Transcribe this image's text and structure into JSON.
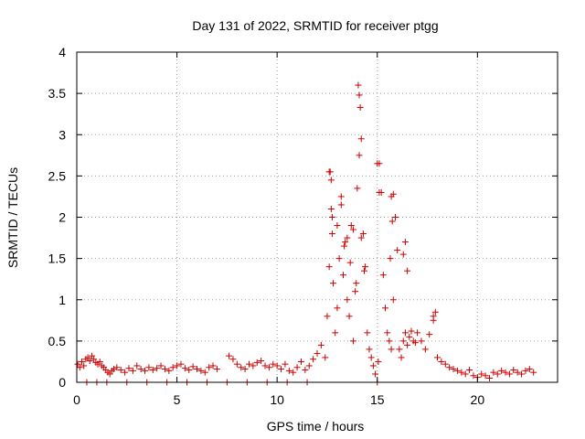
{
  "chart_data": {
    "type": "scatter",
    "title": "Day 131 of 2022, SRMTID for receiver ptgg",
    "xlabel": "GPS time / hours",
    "ylabel": "SRMTID / TECUs",
    "xlim": [
      0,
      24
    ],
    "ylim": [
      0,
      4
    ],
    "xticks": [
      0,
      5,
      10,
      15,
      20
    ],
    "yticks": [
      0,
      0.5,
      1,
      1.5,
      2,
      2.5,
      3,
      3.5,
      4
    ],
    "grid": true,
    "marker": "plus",
    "color": "#cc0000",
    "series": [
      {
        "name": "SRMTID",
        "x": [
          0.05,
          0.15,
          0.25,
          0.35,
          0.45,
          0.55,
          0.65,
          0.75,
          0.85,
          0.95,
          1.05,
          1.15,
          1.25,
          1.35,
          1.45,
          1.55,
          1.65,
          1.75,
          1.85,
          2.0,
          2.2,
          2.4,
          2.6,
          2.8,
          3.0,
          3.2,
          3.4,
          3.6,
          3.8,
          4.0,
          4.2,
          4.4,
          4.6,
          4.8,
          5.0,
          5.2,
          5.4,
          5.6,
          5.8,
          6.0,
          6.2,
          6.4,
          6.6,
          6.8,
          7.0,
          7.6,
          7.8,
          8.0,
          8.2,
          8.4,
          8.6,
          8.8,
          9.0,
          9.2,
          9.4,
          9.6,
          9.8,
          10.0,
          10.2,
          10.4,
          10.6,
          10.8,
          11.0,
          11.2,
          11.4,
          11.6,
          11.8,
          12.0,
          12.2,
          12.4,
          12.5,
          12.6,
          12.65,
          12.7,
          12.75,
          12.8,
          12.9,
          13.0,
          13.1,
          13.2,
          13.3,
          13.4,
          13.5,
          13.6,
          13.7,
          13.8,
          13.9,
          14.0,
          14.05,
          14.1,
          14.15,
          14.2,
          14.3,
          14.4,
          14.5,
          14.6,
          14.7,
          14.8,
          14.9,
          15.0,
          15.05,
          15.1,
          15.2,
          15.3,
          15.4,
          15.5,
          15.6,
          15.7,
          15.75,
          15.8,
          15.9,
          16.0,
          16.1,
          16.2,
          16.3,
          16.4,
          16.5,
          16.6,
          16.7,
          16.8,
          16.9,
          17.0,
          17.2,
          17.4,
          17.6,
          17.8,
          18.0,
          18.2,
          18.4,
          18.6,
          18.8,
          19.0,
          19.2,
          19.4,
          19.6,
          19.8,
          20.0,
          20.2,
          20.4,
          20.6,
          20.8,
          21.0,
          21.2,
          21.4,
          21.6,
          21.8,
          22.0,
          22.2,
          22.4,
          22.6,
          22.8,
          0.5,
          1.0,
          1.5,
          2.5,
          3.5,
          4.5,
          5.5,
          6.5,
          7.5,
          8.5,
          9.5,
          10.5,
          11.5,
          12.6,
          12.7,
          12.75,
          13.0,
          13.2,
          13.35,
          13.5,
          13.65,
          13.8,
          13.95,
          14.1,
          14.2,
          14.35,
          15.0,
          15.1,
          15.65,
          15.7,
          15.8,
          16.3,
          16.4,
          16.5,
          17.8,
          17.9
        ],
        "y": [
          0.22,
          0.18,
          0.25,
          0.2,
          0.28,
          0.3,
          0.26,
          0.32,
          0.28,
          0.24,
          0.22,
          0.25,
          0.2,
          0.18,
          0.15,
          0.12,
          0.1,
          0.14,
          0.16,
          0.18,
          0.15,
          0.12,
          0.17,
          0.14,
          0.2,
          0.16,
          0.14,
          0.18,
          0.15,
          0.17,
          0.2,
          0.16,
          0.14,
          0.18,
          0.2,
          0.22,
          0.17,
          0.15,
          0.19,
          0.16,
          0.14,
          0.12,
          0.18,
          0.2,
          0.16,
          0.32,
          0.28,
          0.22,
          0.18,
          0.16,
          0.22,
          0.2,
          0.24,
          0.26,
          0.2,
          0.18,
          0.22,
          0.2,
          0.16,
          0.22,
          0.14,
          0.12,
          0.18,
          0.25,
          0.15,
          0.2,
          0.28,
          0.35,
          0.45,
          0.3,
          0.8,
          1.4,
          2.55,
          2.1,
          1.8,
          1.2,
          0.6,
          0.9,
          1.5,
          2.25,
          1.3,
          1.7,
          1.0,
          0.8,
          1.9,
          0.5,
          1.1,
          2.35,
          3.6,
          3.48,
          3.33,
          2.95,
          1.8,
          1.4,
          0.6,
          0.4,
          0.3,
          0.2,
          0.1,
          0.0,
          0.25,
          2.65,
          2.3,
          1.3,
          0.9,
          0.6,
          0.5,
          0.4,
          1.95,
          2.28,
          2.0,
          1.6,
          0.4,
          0.3,
          0.5,
          0.6,
          0.45,
          0.55,
          0.62,
          0.5,
          0.48,
          0.6,
          0.5,
          0.4,
          0.58,
          0.75,
          0.3,
          0.25,
          0.22,
          0.18,
          0.16,
          0.14,
          0.12,
          0.1,
          0.15,
          0.08,
          0.06,
          0.1,
          0.08,
          0.05,
          0.12,
          0.1,
          0.14,
          0.12,
          0.1,
          0.15,
          0.12,
          0.1,
          0.14,
          0.16,
          0.12,
          0.0,
          0.0,
          0.0,
          0.0,
          0.0,
          0.0,
          0.0,
          0.0,
          0.0,
          0.0,
          0.0,
          0.0,
          0.0,
          2.55,
          2.45,
          2.0,
          1.9,
          2.15,
          1.65,
          1.75,
          1.45,
          1.85,
          1.2,
          2.75,
          1.75,
          1.35,
          2.65,
          2.3,
          1.5,
          2.25,
          1.0,
          1.55,
          1.7,
          1.35,
          0.8,
          0.85
        ]
      }
    ]
  }
}
